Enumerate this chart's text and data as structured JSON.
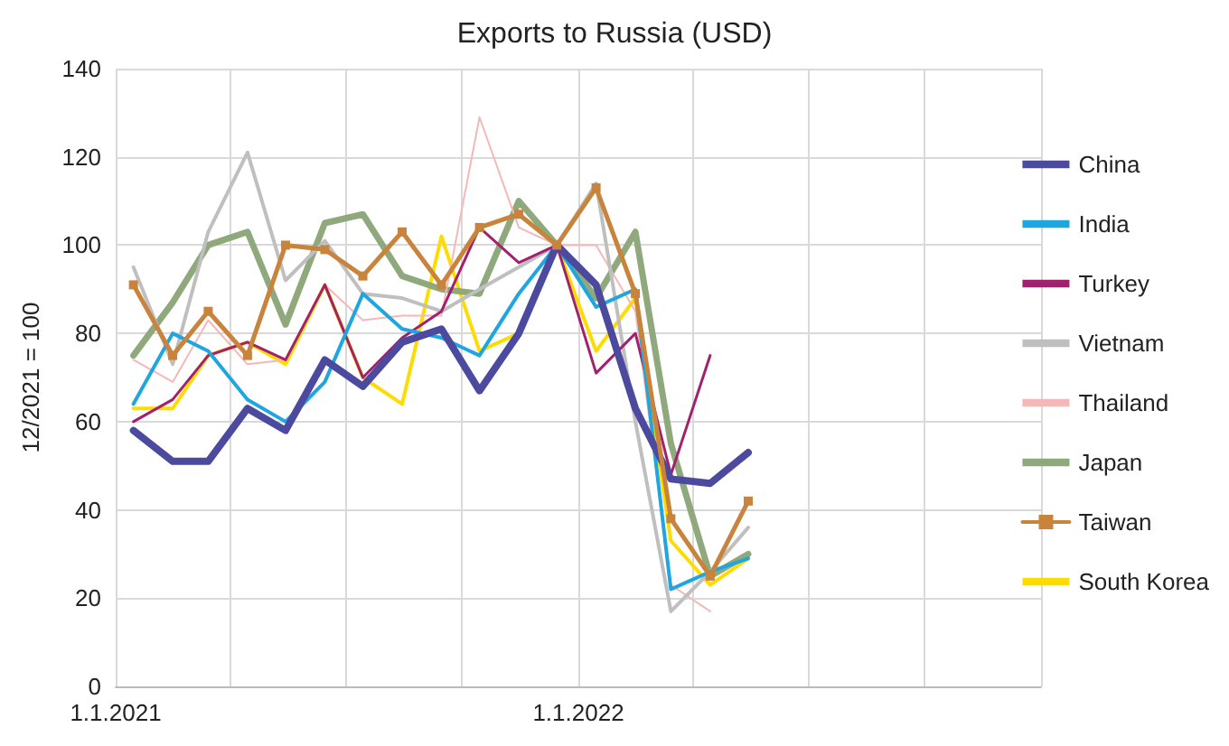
{
  "chart_data": {
    "type": "line",
    "title": "Exports to Russia (USD)",
    "ylabel": "12/2021 = 100",
    "x": [
      "2021-01-15",
      "2021-02-15",
      "2021-03-15",
      "2021-04-15",
      "2021-05-15",
      "2021-06-15",
      "2021-07-15",
      "2021-08-15",
      "2021-09-15",
      "2021-10-15",
      "2021-11-15",
      "2021-12-15",
      "2022-01-15",
      "2022-02-15",
      "2022-03-15",
      "2022-04-15",
      "2022-05-15"
    ],
    "series": [
      {
        "name": "China",
        "color": "#4b4a9e",
        "values": [
          58,
          51,
          51,
          63,
          58,
          74,
          68,
          78,
          81,
          67,
          80,
          100,
          91,
          63,
          47,
          46,
          53
        ]
      },
      {
        "name": "India",
        "color": "#1fa6e0",
        "values": [
          64,
          80,
          76,
          65,
          60,
          69,
          89,
          81,
          79,
          75,
          89,
          100,
          86,
          90,
          22,
          26,
          29
        ]
      },
      {
        "name": "Turkey",
        "color": "#a3206e",
        "values": [
          60,
          65,
          75,
          78,
          74,
          91,
          70,
          79,
          85,
          104,
          96,
          100,
          71,
          80,
          48,
          75,
          null
        ]
      },
      {
        "name": "Vietnam",
        "color": "#bfbfbf",
        "values": [
          95,
          73,
          103,
          121,
          92,
          101,
          89,
          88,
          85,
          90,
          95,
          100,
          114,
          60,
          17,
          26,
          36
        ]
      },
      {
        "name": "Thailand",
        "color": "#f4b8b8",
        "values": [
          74,
          69,
          83,
          73,
          74,
          91,
          83,
          84,
          84,
          129,
          104,
          100,
          100,
          85,
          23,
          17,
          null
        ]
      },
      {
        "name": "Japan",
        "color": "#8fa97c",
        "values": [
          75,
          87,
          100,
          103,
          82,
          105,
          107,
          93,
          90,
          89,
          110,
          100,
          88,
          103,
          55,
          25,
          30
        ]
      },
      {
        "name": "Taiwan",
        "color": "#c8843c",
        "marker": "square",
        "values": [
          91,
          75,
          85,
          75,
          100,
          99,
          93,
          103,
          91,
          104,
          107,
          100,
          113,
          89,
          38,
          25,
          42
        ]
      },
      {
        "name": "South Korea",
        "color": "#ffdc00",
        "values": [
          63,
          63,
          75,
          78,
          73,
          91,
          70,
          64,
          102,
          76,
          80,
          100,
          76,
          88,
          33,
          23,
          29
        ]
      }
    ],
    "xlim": [
      "2021-01-01",
      "2023-01-01"
    ],
    "xticks": [
      {
        "value": "2021-01-01",
        "label": "1.1.2021"
      },
      {
        "value": "2021-04-01",
        "label": null
      },
      {
        "value": "2021-07-01",
        "label": null
      },
      {
        "value": "2021-10-01",
        "label": null
      },
      {
        "value": "2022-01-01",
        "label": "1.1.2022"
      },
      {
        "value": "2022-04-01",
        "label": null
      },
      {
        "value": "2022-07-01",
        "label": null
      },
      {
        "value": "2022-10-01",
        "label": null
      },
      {
        "value": "2023-01-01",
        "label": null
      }
    ],
    "ylim": [
      0,
      140
    ],
    "yticks": [
      0,
      20,
      40,
      60,
      80,
      100,
      120,
      140
    ],
    "grid": true,
    "legend": "right",
    "marker": "none"
  }
}
